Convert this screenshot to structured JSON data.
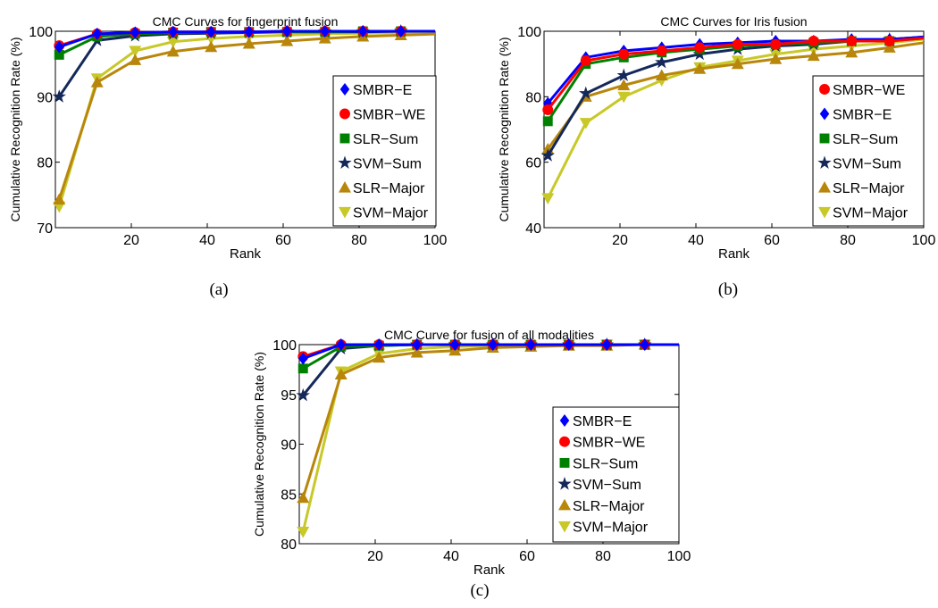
{
  "chart_data": [
    {
      "type": "line",
      "title": "CMC Curves for fingerprint fusion",
      "xlabel": "Rank",
      "ylabel": "Cumulative Recognition Rate (%)",
      "xlim": [
        0,
        100
      ],
      "ylim": [
        70,
        100
      ],
      "xticks": [
        20,
        40,
        60,
        80,
        100
      ],
      "yticks": [
        70,
        80,
        90,
        100
      ],
      "grid": false,
      "legend": "bottom-right",
      "caption": "(a)",
      "series": [
        {
          "name": "SMBR−E",
          "x": [
            1,
            11,
            21,
            31,
            41,
            51,
            61,
            71,
            81,
            91
          ],
          "values": [
            97.6,
            99.6,
            99.8,
            99.9,
            99.9,
            99.9,
            100,
            100,
            100,
            100
          ]
        },
        {
          "name": "SMBR−WE",
          "x": [
            1,
            11,
            21,
            31,
            41,
            51,
            61,
            71,
            81,
            91
          ],
          "values": [
            97.8,
            99.6,
            99.8,
            99.9,
            99.9,
            99.9,
            100,
            100,
            100,
            100
          ]
        },
        {
          "name": "SLR−Sum",
          "x": [
            1,
            11,
            21,
            31,
            41,
            51,
            61,
            71,
            81,
            91
          ],
          "values": [
            96.4,
            99.2,
            99.6,
            99.8,
            99.9,
            99.9,
            99.9,
            99.9,
            100,
            100
          ]
        },
        {
          "name": "SVM−Sum",
          "x": [
            1,
            11,
            21,
            31,
            41,
            51,
            61,
            71,
            81,
            91
          ],
          "values": [
            90.0,
            98.6,
            99.3,
            99.6,
            99.7,
            99.8,
            99.9,
            99.9,
            99.9,
            100
          ]
        },
        {
          "name": "SLR−Major",
          "x": [
            1,
            11,
            21,
            31,
            41,
            51,
            61,
            71,
            81,
            91
          ],
          "values": [
            74.3,
            92.2,
            95.6,
            96.9,
            97.6,
            98.1,
            98.5,
            98.9,
            99.2,
            99.4
          ]
        },
        {
          "name": "SVM−Major",
          "x": [
            1,
            11,
            21,
            31,
            41,
            51,
            61,
            71,
            81,
            91
          ],
          "values": [
            73.2,
            92.8,
            97.0,
            98.4,
            98.9,
            99.2,
            99.4,
            99.6,
            99.7,
            99.8
          ]
        }
      ]
    },
    {
      "type": "line",
      "title": "CMC Curves for Iris fusion",
      "xlabel": "Rank",
      "ylabel": "Cumulative Recognition Rate (%)",
      "xlim": [
        0,
        100
      ],
      "ylim": [
        40,
        100
      ],
      "xticks": [
        20,
        40,
        60,
        80,
        100
      ],
      "yticks": [
        40,
        60,
        80,
        100
      ],
      "grid": false,
      "legend": "right",
      "caption": "(b)",
      "series": [
        {
          "name": "SMBR−WE",
          "x": [
            1,
            11,
            21,
            31,
            41,
            51,
            61,
            71,
            81,
            91
          ],
          "values": [
            76,
            91,
            93,
            94,
            95,
            96,
            96,
            97,
            97,
            97
          ]
        },
        {
          "name": "SMBR−E",
          "x": [
            1,
            11,
            21,
            31,
            41,
            51,
            61,
            71,
            81,
            91
          ],
          "values": [
            78,
            92,
            94,
            95,
            96,
            96.5,
            97,
            97,
            97.5,
            97.5
          ]
        },
        {
          "name": "SLR−Sum",
          "x": [
            1,
            11,
            21,
            31,
            41,
            51,
            61,
            71,
            81,
            91
          ],
          "values": [
            72.5,
            90,
            92,
            93.5,
            94.5,
            95.5,
            96,
            96.5,
            97,
            97
          ]
        },
        {
          "name": "SVM−Sum",
          "x": [
            1,
            11,
            21,
            31,
            41,
            51,
            61,
            71,
            81,
            91
          ],
          "values": [
            62,
            81,
            86.5,
            90.5,
            93,
            94.5,
            95.5,
            96,
            97,
            97.5
          ]
        },
        {
          "name": "SLR−Major",
          "x": [
            1,
            11,
            21,
            31,
            41,
            51,
            61,
            71,
            81,
            91
          ],
          "values": [
            64,
            80,
            83.5,
            86.5,
            88.5,
            90,
            91.5,
            92.5,
            93.5,
            95
          ]
        },
        {
          "name": "SVM−Major",
          "x": [
            1,
            11,
            21,
            31,
            41,
            51,
            61,
            71,
            81,
            91
          ],
          "values": [
            49,
            72,
            80,
            85,
            89,
            91,
            93,
            94.5,
            95.5,
            96.5
          ]
        }
      ]
    },
    {
      "type": "line",
      "title": "CMC Curve for fusion of all modalities",
      "xlabel": "Rank",
      "ylabel": "Cumulative Recognition Rate (%)",
      "xlim": [
        0,
        100
      ],
      "ylim": [
        80,
        100
      ],
      "xticks": [
        20,
        40,
        60,
        80,
        100
      ],
      "yticks": [
        80,
        85,
        90,
        95,
        100
      ],
      "grid": false,
      "legend": "bottom-right",
      "caption": "(c)",
      "series": [
        {
          "name": "SMBR−E",
          "x": [
            1,
            11,
            21,
            31,
            41,
            51,
            61,
            71,
            81,
            91
          ],
          "values": [
            98.6,
            100,
            100,
            100,
            100,
            100,
            100,
            100,
            100,
            100
          ]
        },
        {
          "name": "SMBR−WE",
          "x": [
            1,
            11,
            21,
            31,
            41,
            51,
            61,
            71,
            81,
            91
          ],
          "values": [
            98.8,
            100,
            100,
            100,
            100,
            100,
            100,
            100,
            100,
            100
          ]
        },
        {
          "name": "SLR−Sum",
          "x": [
            1,
            11,
            21,
            31,
            41,
            51,
            61,
            71,
            81,
            91
          ],
          "values": [
            97.6,
            99.8,
            99.9,
            100,
            100,
            100,
            100,
            100,
            100,
            100
          ]
        },
        {
          "name": "SVM−Sum",
          "x": [
            1,
            11,
            21,
            31,
            41,
            51,
            61,
            71,
            81,
            91
          ],
          "values": [
            94.9,
            99.6,
            99.9,
            100,
            100,
            100,
            100,
            100,
            100,
            100
          ]
        },
        {
          "name": "SLR−Major",
          "x": [
            1,
            11,
            21,
            31,
            41,
            51,
            61,
            71,
            81,
            91
          ],
          "values": [
            84.6,
            97.0,
            98.7,
            99.2,
            99.4,
            99.7,
            99.8,
            99.9,
            99.9,
            100
          ]
        },
        {
          "name": "SVM−Major",
          "x": [
            1,
            11,
            21,
            31,
            41,
            51,
            61,
            71,
            81,
            91
          ],
          "values": [
            81.2,
            97.3,
            99.1,
            99.6,
            99.8,
            99.9,
            99.9,
            100,
            100,
            100
          ]
        }
      ]
    }
  ],
  "styles": {
    "SMBR−E": {
      "color": "#0000ff",
      "marker": "diamond"
    },
    "SMBR−WE": {
      "color": "#ff0000",
      "marker": "circle"
    },
    "SLR−Sum": {
      "color": "#008000",
      "marker": "square"
    },
    "SVM−Sum": {
      "color": "#14285a",
      "marker": "star"
    },
    "SLR−Major": {
      "color": "#b8860b",
      "marker": "triangle-up"
    },
    "SVM−Major": {
      "color": "#c8c828",
      "marker": "triangle-down"
    }
  }
}
